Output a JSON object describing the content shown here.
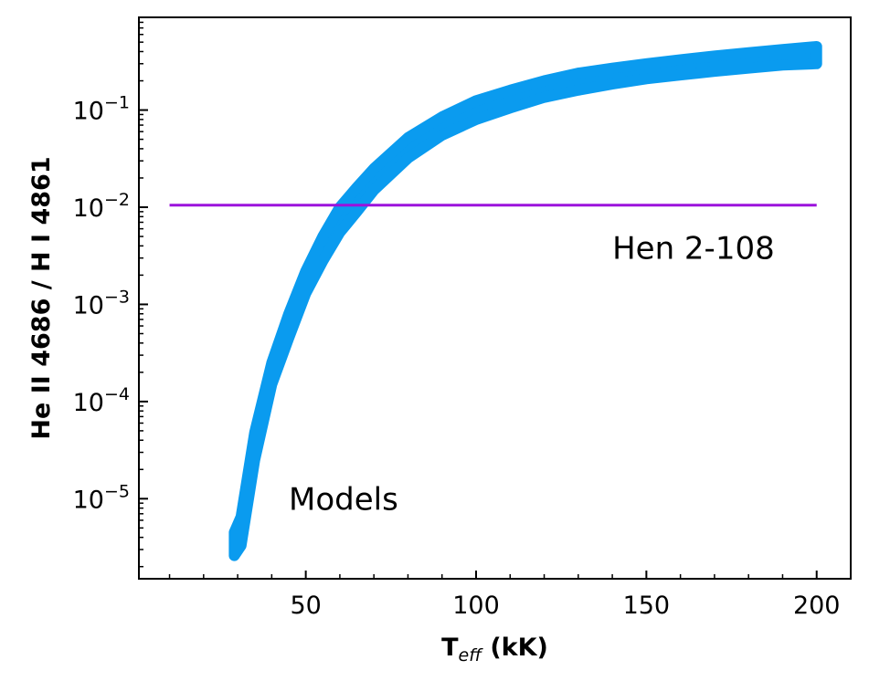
{
  "chart_data": {
    "type": "area",
    "xlabel": "T",
    "xlabel_sub": "eff",
    "xlabel_unit": "(kK)",
    "ylabel": "He II 4686 / H I 4861",
    "xlim": [
      1,
      210
    ],
    "ylim": [
      1.5e-06,
      0.9
    ],
    "yscale": "log",
    "x_ticks": [
      50,
      100,
      150,
      200
    ],
    "x_tick_labels": [
      "50",
      "100",
      "150",
      "200"
    ],
    "y_ticks": [
      1e-05,
      0.0001,
      0.001,
      0.01,
      0.1
    ],
    "y_tick_base": [
      "10",
      "10",
      "10",
      "10",
      "10"
    ],
    "y_tick_exp": [
      "−5",
      "−4",
      "−3",
      "−2",
      "−1"
    ],
    "grid": false,
    "colors": {
      "band": "#0a9bef",
      "reference_line": "#9b12dc"
    },
    "series": [
      {
        "type": "band",
        "x": [
          29,
          31,
          35,
          40,
          45,
          50,
          55,
          60,
          65,
          70,
          80,
          90,
          100,
          110,
          120,
          130,
          140,
          150,
          160,
          170,
          180,
          190,
          200
        ],
        "y_low": [
          2.6e-06,
          3.3e-06,
          2.5e-05,
          0.00015,
          0.00045,
          0.0013,
          0.0028,
          0.0055,
          0.009,
          0.015,
          0.032,
          0.055,
          0.08,
          0.105,
          0.135,
          0.16,
          0.185,
          0.21,
          0.23,
          0.25,
          0.27,
          0.29,
          0.3
        ],
        "y_high": [
          4.5e-06,
          6.5e-06,
          4.8e-05,
          0.00025,
          0.0008,
          0.0022,
          0.005,
          0.01,
          0.016,
          0.025,
          0.052,
          0.085,
          0.125,
          0.16,
          0.2,
          0.24,
          0.27,
          0.3,
          0.33,
          0.36,
          0.39,
          0.42,
          0.45
        ]
      },
      {
        "type": "hline",
        "y": 0.0105,
        "x_range": [
          10,
          200
        ]
      }
    ],
    "annotations": [
      {
        "text": "Hen 2-108",
        "x": 140,
        "y": 0.0038
      },
      {
        "text": "Models",
        "x": 45,
        "y": 1e-05
      }
    ]
  }
}
